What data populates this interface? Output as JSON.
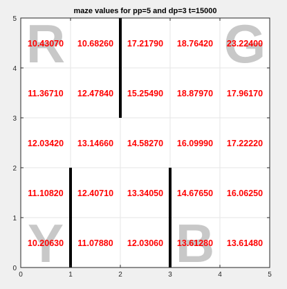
{
  "chart_data": {
    "type": "heatmap",
    "title": "maze values for pp=5 and dp=3 t=15000",
    "xlabel": "",
    "ylabel": "",
    "xlim": [
      0,
      5
    ],
    "ylim": [
      0,
      5
    ],
    "grid": true,
    "x_ticks": [
      "0",
      "1",
      "2",
      "3",
      "4",
      "5"
    ],
    "y_ticks": [
      "0",
      "1",
      "2",
      "3",
      "4",
      "5"
    ],
    "rows": [
      {
        "y": 4.5,
        "values": [
          "10.43070",
          "10.68260",
          "17.21790",
          "18.76420",
          "23.22400"
        ]
      },
      {
        "y": 3.5,
        "values": [
          "11.36710",
          "12.47840",
          "15.25490",
          "18.87970",
          "17.96170"
        ]
      },
      {
        "y": 2.5,
        "values": [
          "12.03420",
          "13.14660",
          "14.58270",
          "16.09990",
          "17.22220"
        ]
      },
      {
        "y": 1.5,
        "values": [
          "11.10820",
          "12.40710",
          "13.34050",
          "14.67650",
          "16.06250"
        ]
      },
      {
        "y": 0.5,
        "values": [
          "10.20630",
          "11.07880",
          "12.03060",
          "13.61280",
          "13.61480"
        ]
      }
    ],
    "walls": [
      {
        "x": 2,
        "y1": 3,
        "y2": 5
      },
      {
        "x": 1,
        "y1": 0,
        "y2": 2
      },
      {
        "x": 3,
        "y1": 0,
        "y2": 2
      }
    ],
    "corner_letters": [
      {
        "letter": "R",
        "x": 0.5,
        "y": 4.5
      },
      {
        "letter": "G",
        "x": 4.5,
        "y": 4.5
      },
      {
        "letter": "Y",
        "x": 0.5,
        "y": 0.5
      },
      {
        "letter": "B",
        "x": 3.5,
        "y": 0.5
      }
    ],
    "colors": {
      "values": "#ff0000",
      "walls": "#000000",
      "letters": "#c8c8c8",
      "grid": "#e6e6e6",
      "axes": "#262626",
      "figure_background": "#f0f0f0",
      "plot_background": "#ffffff"
    }
  }
}
